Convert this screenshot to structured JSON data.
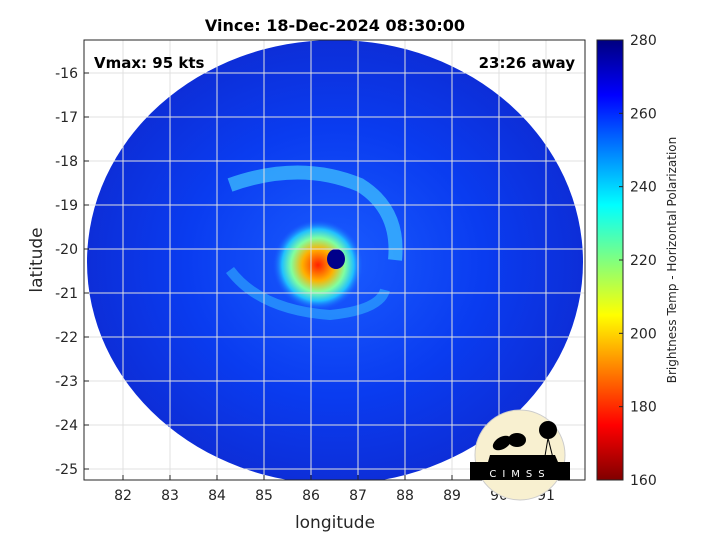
{
  "title": "Vince: 18-Dec-2024 08:30:00",
  "vmax_label": "Vmax: 95 kts",
  "time_away": "23:26 away",
  "xlabel": "longitude",
  "ylabel": "latitude",
  "x_ticks": [
    "82",
    "83",
    "84",
    "85",
    "86",
    "87",
    "88",
    "89",
    "90",
    "91"
  ],
  "y_ticks": [
    "-16",
    "-17",
    "-18",
    "-19",
    "-20",
    "-21",
    "-22",
    "-23",
    "-24",
    "-25"
  ],
  "colorbar": {
    "label": "Brightness Temp - Horizontal Polarization",
    "ticks": [
      "280",
      "260",
      "240",
      "220",
      "200",
      "180",
      "160"
    ],
    "range": [
      160,
      280
    ],
    "colormap": "jet"
  },
  "map": {
    "x_range": [
      81.17,
      91.83
    ],
    "y_range": [
      -25.25,
      -15.25
    ],
    "storm_center": {
      "lon": 86.5,
      "lat": -20.2
    }
  },
  "logo": {
    "text": "CIMSS"
  }
}
